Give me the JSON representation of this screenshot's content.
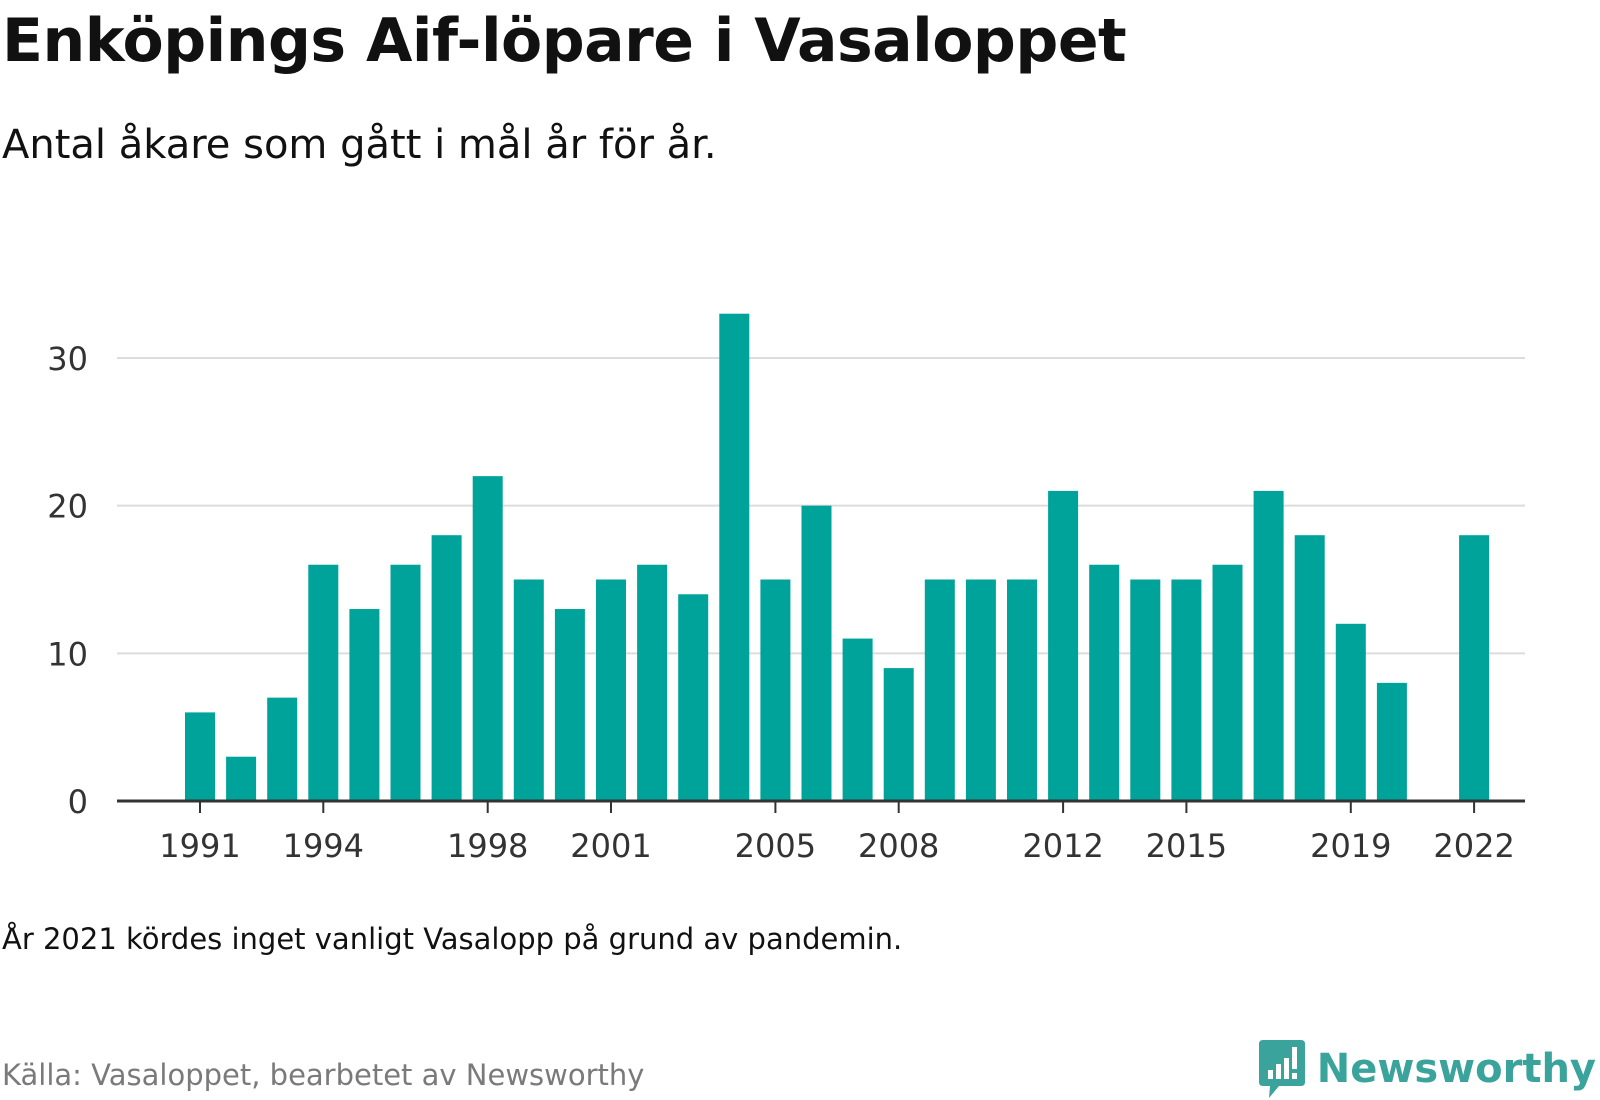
{
  "header": {
    "title": "Enköpings Aif-löpare i Vasaloppet",
    "subtitle": "Antal åkare som gått i mål år för år."
  },
  "footer": {
    "note": "År 2021 kördes inget vanligt Vasalopp på grund av pandemin.",
    "source": "Källa: Vasaloppet, bearbetet av Newsworthy",
    "brand_name": "Newsworthy",
    "brand_icon": "newsworthy-logo-icon"
  },
  "colors": {
    "bar": "#00a39a",
    "grid": "#dcdcdc",
    "axis": "#333333",
    "brand": "#3aa39b"
  },
  "chart_data": {
    "type": "bar",
    "title": "Enköpings Aif-löpare i Vasaloppet",
    "subtitle": "Antal åkare som gått i mål år för år.",
    "xlabel": "",
    "ylabel": "",
    "ylim": [
      0,
      33
    ],
    "yticks": [
      0,
      10,
      20,
      30
    ],
    "xtick_labels": [
      "1991",
      "1994",
      "1998",
      "2001",
      "2005",
      "2008",
      "2012",
      "2015",
      "2019",
      "2022"
    ],
    "grid": true,
    "categories": [
      "1991",
      "1992",
      "1993",
      "1994",
      "1995",
      "1996",
      "1997",
      "1998",
      "1999",
      "2000",
      "2001",
      "2002",
      "2003",
      "2004",
      "2005",
      "2006",
      "2007",
      "2008",
      "2009",
      "2010",
      "2011",
      "2012",
      "2013",
      "2014",
      "2015",
      "2016",
      "2017",
      "2018",
      "2019",
      "2020",
      "2021",
      "2022"
    ],
    "values": [
      6,
      3,
      7,
      16,
      13,
      16,
      18,
      22,
      15,
      13,
      15,
      16,
      14,
      33,
      15,
      20,
      11,
      9,
      15,
      15,
      15,
      21,
      16,
      15,
      15,
      16,
      21,
      18,
      12,
      8,
      null,
      18
    ]
  }
}
